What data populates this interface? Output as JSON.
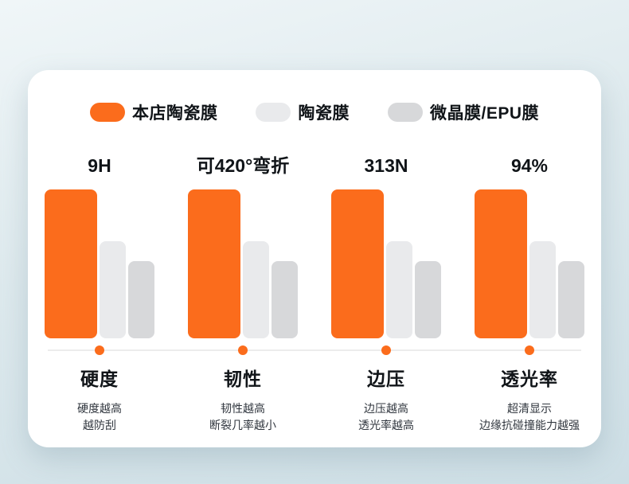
{
  "legend": {
    "items": [
      {
        "label": "本店陶瓷膜",
        "color": "#fb6c1c"
      },
      {
        "label": "陶瓷膜",
        "color": "#e9eaec"
      },
      {
        "label": "微晶膜/EPU膜",
        "color": "#d7d8da"
      }
    ]
  },
  "chart_data": {
    "type": "bar",
    "categories": [
      "硬度",
      "韧性",
      "边压",
      "透光率"
    ],
    "value_labels": [
      "9H",
      "可420°弯折",
      "313N",
      "94%"
    ],
    "series": [
      {
        "name": "本店陶瓷膜",
        "color": "#fb6c1c",
        "values": [
          100,
          100,
          100,
          100
        ]
      },
      {
        "name": "陶瓷膜",
        "color": "#e9eaec",
        "values": [
          65,
          65,
          65,
          65
        ]
      },
      {
        "name": "微晶膜/EPU膜",
        "color": "#d7d8da",
        "values": [
          52,
          52,
          52,
          52
        ]
      }
    ],
    "ylim": [
      0,
      100
    ],
    "grid": "off",
    "legend_position": "top",
    "captions": [
      {
        "line1": "硬度越高",
        "line2": "越防刮"
      },
      {
        "line1": "韧性越高",
        "line2": "断裂几率越小"
      },
      {
        "line1": "边压越高",
        "line2": "透光率越高"
      },
      {
        "line1": "超清显示",
        "line2": "边缘抗碰撞能力越强"
      }
    ]
  }
}
